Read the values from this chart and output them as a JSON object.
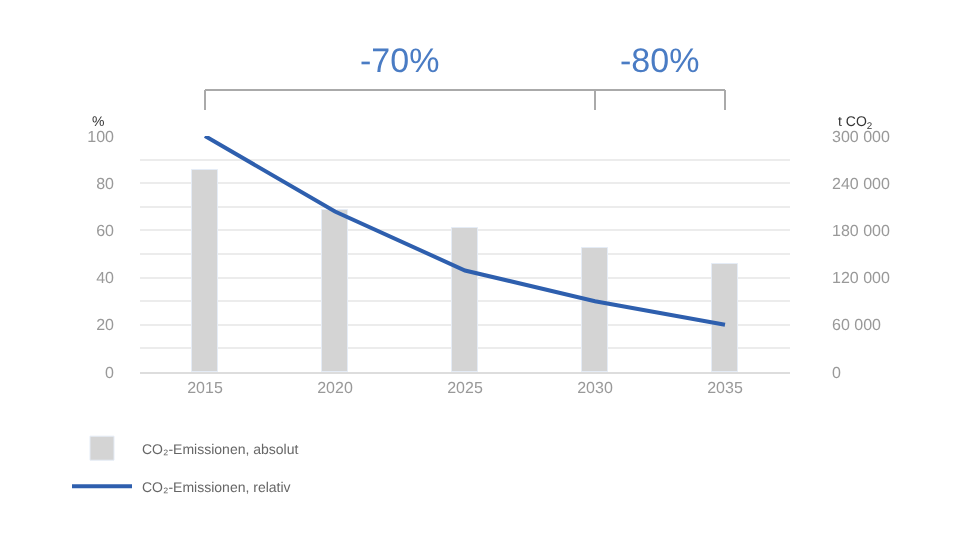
{
  "chart_data": {
    "type": "bar",
    "categories": [
      "2015",
      "2020",
      "2025",
      "2030",
      "2035"
    ],
    "series": [
      {
        "name": "CO₂-Emissionen, absolut",
        "axis": "y2",
        "color": "#d4d4d4",
        "values": [
          258000,
          207000,
          183000,
          158000,
          137000
        ]
      },
      {
        "name": "CO₂-Emissionen, relativ",
        "type": "line",
        "color": "#2e5fae",
        "values": [
          100,
          68,
          43,
          30,
          20
        ]
      }
    ],
    "ylabel": "%",
    "y2label": "t CO$_{2}$",
    "ylim": [
      0,
      100
    ],
    "yticks": [
      0,
      {
        "value": 10,
        "label": null
      },
      20,
      {
        "value": 30,
        "label": null
      },
      40,
      {
        "value": 50,
        "label": null
      },
      60,
      {
        "value": 70,
        "label": null
      },
      80,
      {
        "value": 90,
        "label": null
      },
      100
    ],
    "y2lim": [
      0,
      300000
    ],
    "y2ticks": [
      0,
      {
        "value": 60000,
        "label": "60 000"
      },
      {
        "value": 120000,
        "label": "120 000"
      },
      {
        "value": 180000,
        "label": "180 000"
      },
      {
        "value": 240000,
        "label": "240 000"
      },
      {
        "value": 300000,
        "label": "300 000"
      }
    ],
    "annotations": [
      "-70%",
      "-80%"
    ],
    "grid": "y",
    "legend": "bottom left",
    "marker": "none",
    "line_style": "solid"
  }
}
